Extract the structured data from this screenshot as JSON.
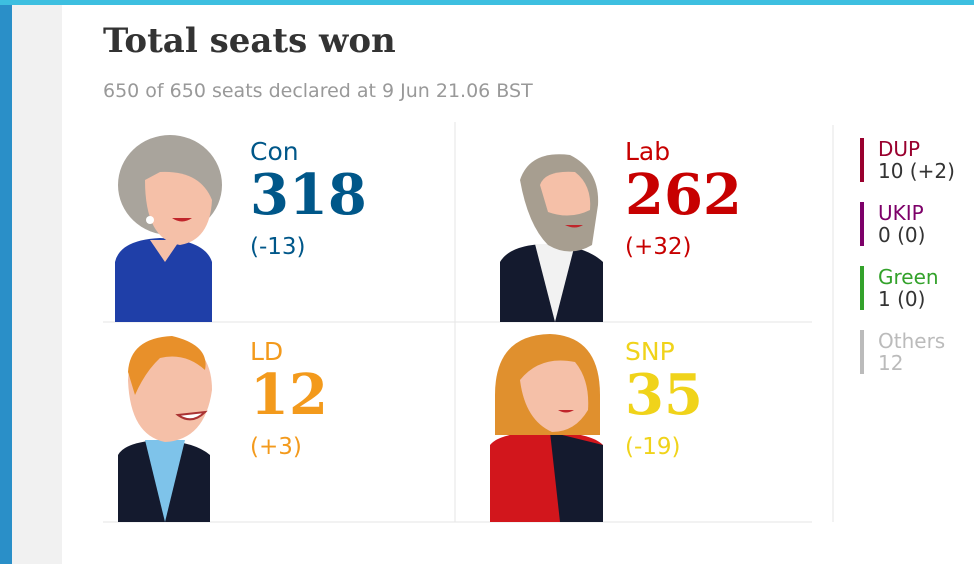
{
  "header": {
    "title": "Total seats won",
    "subtitle": "650 of 650 seats declared at 9 Jun 21.06 BST"
  },
  "parties": [
    {
      "name": "Con",
      "seats": 318,
      "change": "(-13)",
      "color": "#005789"
    },
    {
      "name": "Lab",
      "seats": 262,
      "change": "(+32)",
      "color": "#c70000"
    },
    {
      "name": "LD",
      "seats": 12,
      "change": "(+3)",
      "color": "#f39a1c"
    },
    {
      "name": "SNP",
      "seats": 35,
      "change": "(-19)",
      "color": "#f0d31a"
    }
  ],
  "minor_parties": [
    {
      "name": "DUP",
      "result": "10 (+2)",
      "color": "#99002e"
    },
    {
      "name": "UKIP",
      "result": "0 (0)",
      "color": "#7d0069"
    },
    {
      "name": "Green",
      "result": "1 (0)",
      "color": "#33a22b"
    },
    {
      "name": "Others",
      "result": "12",
      "color": "#bbbbbb"
    }
  ]
}
